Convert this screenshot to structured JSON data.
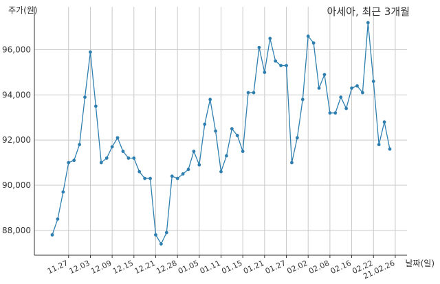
{
  "chart_data": {
    "type": "line",
    "title": "아세아, 최근 3개월",
    "xlabel": "날짜(일)",
    "ylabel": "주가(원)",
    "ylim": [
      86900,
      97900
    ],
    "yticks": [
      88000,
      90000,
      92000,
      94000,
      96000
    ],
    "ytick_labels": [
      "88,000",
      "90,000",
      "92,000",
      "94,000",
      "96,000"
    ],
    "xticks": [
      "11.27",
      "12.03",
      "12.09",
      "12.15",
      "12.21",
      "12.28",
      "01.05",
      "01.11",
      "01.15",
      "01.21",
      "01.27",
      "02.02",
      "02.08",
      "02.16",
      "02.22",
      "21.02.26"
    ],
    "xtick_positions": [
      3,
      7,
      11,
      15,
      19,
      23,
      27,
      31,
      35,
      39,
      43,
      47,
      51,
      55,
      59,
      63
    ],
    "grid": true,
    "series": [
      {
        "name": "",
        "color": "#2e7fb0",
        "values": [
          87800,
          88500,
          89700,
          91000,
          91100,
          91800,
          93900,
          95900,
          93500,
          91000,
          91200,
          91700,
          92100,
          91500,
          91200,
          91200,
          90600,
          90300,
          90300,
          87800,
          87400,
          87900,
          90400,
          90300,
          90500,
          90700,
          91500,
          90900,
          92700,
          93800,
          92400,
          90600,
          91300,
          92500,
          92200,
          91500,
          94100,
          94100,
          96100,
          95000,
          96500,
          95500,
          95300,
          95300,
          91000,
          92100,
          93800,
          96600,
          96300,
          94300,
          94900,
          93200,
          93200,
          93900,
          93400,
          94300,
          94400,
          94100,
          97200,
          94600,
          91800,
          92800,
          91600
        ]
      }
    ]
  }
}
